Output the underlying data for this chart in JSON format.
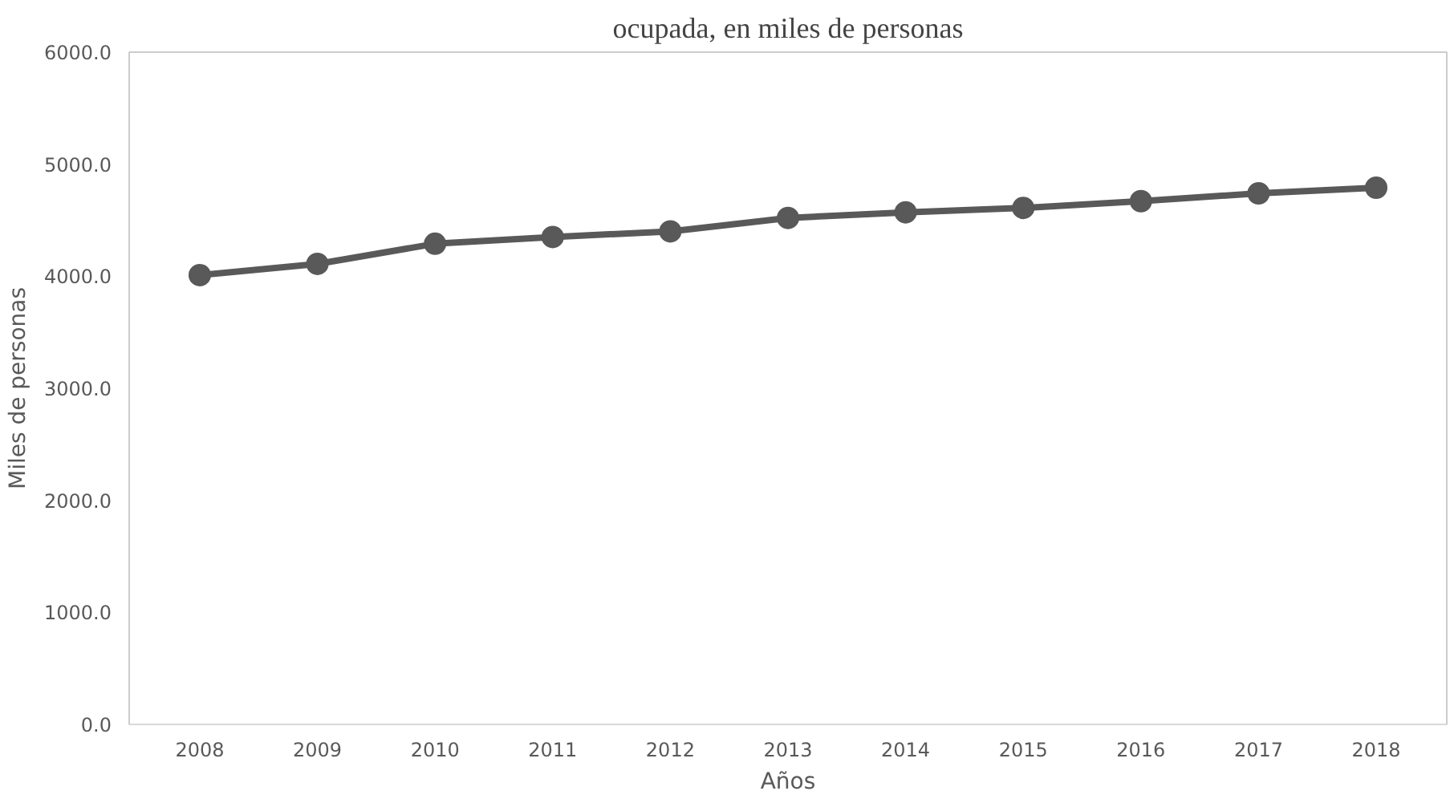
{
  "chart_data": {
    "type": "line",
    "title": "ocupada, en miles de personas",
    "xlabel": "Años",
    "ylabel": "Miles de personas",
    "categories": [
      "2008",
      "2009",
      "2010",
      "2011",
      "2012",
      "2013",
      "2014",
      "2015",
      "2016",
      "2017",
      "2018"
    ],
    "series": [
      {
        "color": "#595959",
        "values": [
          4010,
          4110,
          4290,
          4350,
          4400,
          4520,
          4570,
          4610,
          4670,
          4740,
          4790
        ]
      }
    ],
    "ylim": [
      0,
      6000
    ],
    "yticks": [
      {
        "value": 0,
        "label": "0.0"
      },
      {
        "value": 1000,
        "label": "1000.0"
      },
      {
        "value": 2000,
        "label": "2000.0"
      },
      {
        "value": 3000,
        "label": "3000.0"
      },
      {
        "value": 4000,
        "label": "4000.0"
      },
      {
        "value": 5000,
        "label": "5000.0"
      },
      {
        "value": 6000,
        "label": "6000.0"
      }
    ],
    "grid": false,
    "marker": "circle",
    "line_style": "solid"
  }
}
